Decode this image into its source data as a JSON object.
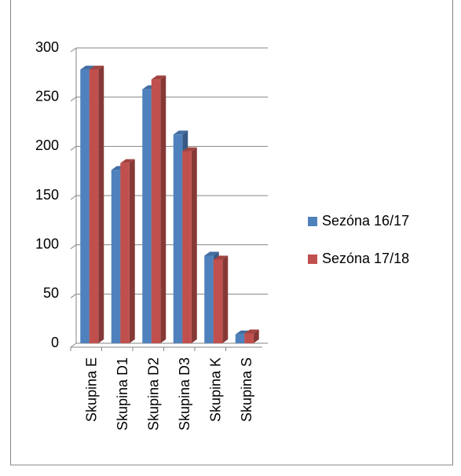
{
  "chart_data": {
    "type": "bar",
    "categories": [
      "Skupina E",
      "Skupina D1",
      "Skupina D2",
      "Skupina D3",
      "Skupina K",
      "Skupina S"
    ],
    "series": [
      {
        "name": "Sezóna 16/17",
        "color": "#4f81bd",
        "values": [
          278,
          176,
          258,
          212,
          89,
          9
        ]
      },
      {
        "name": "Sezóna 17/18",
        "color": "#c0504d",
        "values": [
          278,
          183,
          268,
          195,
          85,
          10
        ]
      }
    ],
    "ylim": [
      0,
      300
    ],
    "yticks": [
      0,
      50,
      100,
      150,
      200,
      250,
      300
    ],
    "grid": true,
    "legend": "right"
  }
}
